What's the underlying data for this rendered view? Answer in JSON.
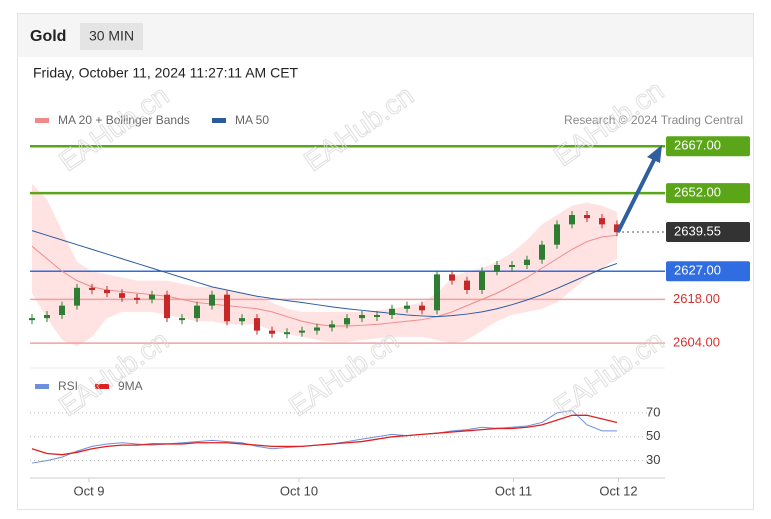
{
  "header": {
    "instrument": "Gold",
    "timeframe": "30 MIN",
    "timestamp": "Friday, October 11, 2024 11:27:11 AM CET"
  },
  "chart_data": {
    "type": "candlestick",
    "legend": [
      "MA 20 + Bollinger Bands",
      "MA 50"
    ],
    "credit": "Research © 2024 Trading Central",
    "watermark": "EAHub.cn",
    "x": [
      0,
      1,
      2,
      3,
      4,
      5,
      6,
      7,
      8,
      9,
      10,
      11,
      12,
      13,
      14,
      15,
      16,
      17,
      18,
      19,
      20,
      21,
      22,
      23,
      24,
      25,
      26,
      27,
      28,
      29,
      30,
      31,
      32,
      33,
      34,
      35,
      36,
      37,
      38,
      39
    ],
    "xlim": [
      0,
      42
    ],
    "xticks": [
      {
        "value": 3.8,
        "label": "Oct 9"
      },
      {
        "value": 17.8,
        "label": "Oct 10"
      },
      {
        "value": 32.1,
        "label": "Oct 11"
      },
      {
        "value": 39.1,
        "label": "Oct 12"
      }
    ],
    "ylim": [
      2597,
      2669
    ],
    "closes": [
      2612,
      2613,
      2616,
      2621.7,
      2621,
      2620,
      2618.5,
      2618,
      2619.5,
      2612,
      2612,
      2616,
      2619.5,
      2611,
      2612,
      2608,
      2607,
      2607.5,
      2608,
      2609,
      2610,
      2612,
      2613,
      2613,
      2615,
      2616,
      2614.5,
      2626,
      2624,
      2621,
      2627,
      2629,
      2629,
      2630.7,
      2635.5,
      2642,
      2645,
      2644,
      2642,
      2639.5
    ],
    "series": [
      {
        "name": "MA 20 + Bollinger Bands",
        "color": "#f08a8a",
        "values": [
          2635,
          2631,
          2627,
          2624,
          2622,
          2621,
          2620.5,
          2620,
          2619.5,
          2619,
          2618,
          2617,
          2616.5,
          2616,
          2615.5,
          2615,
          2614,
          2612.5,
          2611,
          2610,
          2609.5,
          2609.5,
          2609.7,
          2610,
          2610.5,
          2611,
          2611.5,
          2612.5,
          2614,
          2616,
          2618,
          2620,
          2622.5,
          2625,
          2628,
          2631,
          2634,
          2636.5,
          2638,
          2638.5
        ],
        "upper": [
          2655,
          2650,
          2640,
          2630,
          2627,
          2626,
          2625,
          2624,
          2624,
          2624,
          2623,
          2622,
          2622,
          2621,
          2620,
          2619,
          2617,
          2615,
          2614,
          2614,
          2614,
          2614,
          2614,
          2614.5,
          2615,
          2616,
          2617,
          2620,
          2625,
          2627,
          2628,
          2630,
          2633,
          2637,
          2642,
          2645,
          2648,
          2649,
          2648,
          2646
        ],
        "lower": [
          2620,
          2612,
          2605,
          2603,
          2606,
          2612,
          2614,
          2614,
          2614,
          2613,
          2612,
          2611,
          2611,
          2610,
          2610,
          2610,
          2608,
          2607,
          2606,
          2605,
          2604.5,
          2604.5,
          2605,
          2605.5,
          2606,
          2606,
          2606,
          2605,
          2604,
          2605,
          2608,
          2611,
          2613,
          2614,
          2615,
          2617,
          2621,
          2625,
          2628,
          2631
        ]
      },
      {
        "name": "MA 50",
        "color": "#2c5a9e",
        "values": [
          2640,
          2638.5,
          2637,
          2635.5,
          2634,
          2632.5,
          2631,
          2629.5,
          2628,
          2626.5,
          2625,
          2623.5,
          2622,
          2621,
          2620,
          2619,
          2618.3,
          2617.6,
          2617,
          2616.3,
          2615.6,
          2615,
          2614.5,
          2614,
          2613.5,
          2613,
          2612.7,
          2612.5,
          2612.8,
          2613.3,
          2614,
          2615,
          2616.3,
          2617.8,
          2619.5,
          2621.5,
          2623.6,
          2625.7,
          2627.8,
          2629.5
        ]
      }
    ],
    "levels": [
      {
        "value": 2667,
        "label": "2667.00",
        "color": "#5aa618",
        "style": "box"
      },
      {
        "value": 2652,
        "label": "2652.00",
        "color": "#5aa618",
        "style": "box"
      },
      {
        "value": 2639.55,
        "label": "2639.55",
        "color": "#333333",
        "style": "current"
      },
      {
        "value": 2627,
        "label": "2627.00",
        "color": "#2f6de0",
        "style": "box"
      },
      {
        "value": 2618,
        "label": "2618.00",
        "color": "#f4a0a0",
        "style": "text"
      },
      {
        "value": 2604,
        "label": "2604.00",
        "color": "#f4a0a0",
        "style": "text"
      }
    ],
    "rsi": {
      "legend": [
        "RSI",
        "9MA"
      ],
      "ylim": [
        18,
        85
      ],
      "yticks": [
        30,
        50,
        70
      ],
      "series": [
        {
          "name": "RSI",
          "color": "#6f8fe0",
          "values": [
            28,
            30,
            33,
            38,
            42,
            44,
            45,
            44,
            43,
            44,
            45,
            46,
            47,
            46,
            45,
            42,
            40,
            41,
            42,
            43,
            44,
            46,
            48,
            50,
            52,
            51,
            52,
            53,
            55,
            56,
            58,
            57,
            58,
            59,
            62,
            70,
            72,
            60,
            55,
            55
          ]
        },
        {
          "name": "9MA",
          "color": "#e02020",
          "values": [
            40,
            36,
            35,
            37,
            40,
            42,
            43,
            43,
            44,
            44,
            44,
            45,
            45,
            45,
            44,
            43,
            42,
            42,
            42,
            43,
            44,
            45,
            46,
            48,
            50,
            51,
            52,
            53,
            54,
            55,
            56,
            57,
            57,
            58,
            60,
            64,
            68,
            68,
            65,
            62
          ]
        }
      ]
    }
  }
}
